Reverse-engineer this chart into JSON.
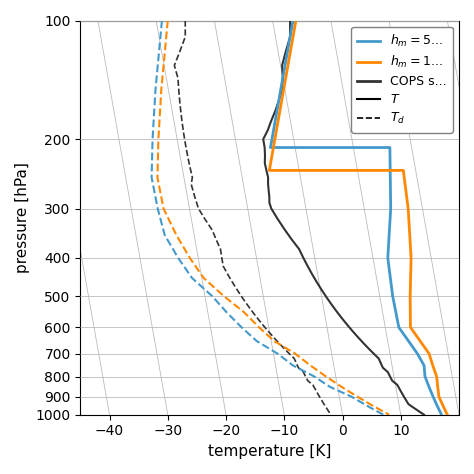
{
  "title": "",
  "xlabel": "temperature [K]",
  "ylabel": "pressure [hPa]",
  "xlim": [
    -45,
    20
  ],
  "ylim_log": [
    100,
    1000
  ],
  "pressure_ticks": [
    100,
    200,
    300,
    400,
    500,
    600,
    700,
    800,
    900,
    1000
  ],
  "xticks": [
    -40,
    -30,
    -20,
    -10,
    0,
    10
  ],
  "grid_color": "#bbbbbb",
  "skew_factor": 12.0,
  "blue_color": "#4499cc",
  "orange_color": "#ff8800",
  "dark_color": "#333333",
  "pressure_hm5_T": [
    100,
    210,
    210,
    300,
    400,
    500,
    600,
    700,
    750,
    800,
    850,
    900,
    950,
    1000
  ],
  "temp_hm5_T": [
    -20.5,
    -20.5,
    0,
    2,
    3,
    5,
    7,
    11,
    12.5,
    13,
    14,
    15,
    16,
    17
  ],
  "pressure_hm5_Td": [
    100,
    150,
    200,
    250,
    300,
    350,
    400,
    450,
    500,
    550,
    600,
    650,
    700,
    750,
    800,
    850,
    900,
    950,
    1000
  ],
  "temp_hm5_Td": [
    -43,
    -42,
    -41,
    -40,
    -38,
    -36,
    -33,
    -30,
    -26,
    -23,
    -20,
    -17,
    -13,
    -10,
    -6,
    -3,
    1,
    4,
    7
  ],
  "pressure_hm10_T": [
    100,
    240,
    240,
    300,
    400,
    500,
    600,
    700,
    750,
    800,
    850,
    900,
    950,
    1000
  ],
  "temp_hm10_T": [
    -20,
    -20,
    3,
    5,
    7,
    8,
    9,
    13,
    14,
    15,
    15.5,
    16,
    17,
    18
  ],
  "pressure_hm10_Td": [
    100,
    150,
    200,
    250,
    300,
    350,
    400,
    450,
    500,
    550,
    600,
    650,
    700,
    750,
    800,
    850,
    900,
    950,
    1000
  ],
  "temp_hm10_Td": [
    -42,
    -41,
    -40,
    -39,
    -37,
    -34,
    -31,
    -28,
    -24,
    -20,
    -17,
    -14,
    -10,
    -7,
    -4,
    -1,
    2,
    5,
    8
  ],
  "pressure_cops_T": [
    100,
    110,
    120,
    130,
    140,
    150,
    160,
    170,
    180,
    190,
    200,
    210,
    220,
    230,
    240,
    250,
    260,
    270,
    280,
    290,
    300,
    320,
    340,
    360,
    380,
    400,
    420,
    440,
    460,
    480,
    500,
    520,
    540,
    560,
    580,
    600,
    620,
    640,
    660,
    680,
    700,
    720,
    740,
    760,
    780,
    800,
    820,
    840,
    860,
    880,
    900,
    920,
    940,
    960,
    980,
    1000
  ],
  "temp_cops_T": [
    -21,
    -20.5,
    -20.8,
    -21,
    -20.5,
    -20.3,
    -20.5,
    -20.8,
    -21.2,
    -21.5,
    -22,
    -21.5,
    -21.2,
    -21,
    -20.5,
    -20,
    -19.8,
    -19.5,
    -19.2,
    -19,
    -18.5,
    -17,
    -15.5,
    -14,
    -12.5,
    -11.5,
    -10.5,
    -9.5,
    -8.5,
    -7.5,
    -6.5,
    -5.5,
    -4.5,
    -3.5,
    -2.5,
    -1.5,
    -0.5,
    0.5,
    1.5,
    2.5,
    3.5,
    4.5,
    5,
    5.5,
    6.5,
    7,
    7.5,
    8.5,
    9,
    9.5,
    10,
    10.5,
    11,
    12,
    13,
    14
  ],
  "pressure_cops_Td": [
    100,
    110,
    120,
    130,
    140,
    150,
    160,
    170,
    180,
    190,
    200,
    210,
    220,
    230,
    240,
    250,
    260,
    270,
    280,
    290,
    300,
    320,
    340,
    360,
    380,
    400,
    420,
    440,
    460,
    480,
    500,
    520,
    540,
    560,
    580,
    600,
    620,
    640,
    660,
    680,
    700,
    720,
    740,
    760,
    780,
    800,
    820,
    840,
    860,
    880,
    900,
    920,
    940,
    960,
    980,
    1000
  ],
  "temp_cops_Td": [
    -39,
    -38.5,
    -39,
    -39.5,
    -38.5,
    -38,
    -37.5,
    -37,
    -36.5,
    -36,
    -35.5,
    -35,
    -34.5,
    -34,
    -33.5,
    -33,
    -33,
    -32.5,
    -32,
    -31.5,
    -31,
    -29.5,
    -28,
    -27,
    -26,
    -25.5,
    -25,
    -24,
    -23,
    -22,
    -21,
    -20,
    -19,
    -18,
    -17,
    -16,
    -15,
    -14,
    -13,
    -12,
    -11,
    -10,
    -9.5,
    -9,
    -8,
    -7.5,
    -7,
    -6,
    -5.5,
    -5,
    -4.5,
    -4,
    -3.5,
    -3,
    -2.5,
    -2.0
  ]
}
